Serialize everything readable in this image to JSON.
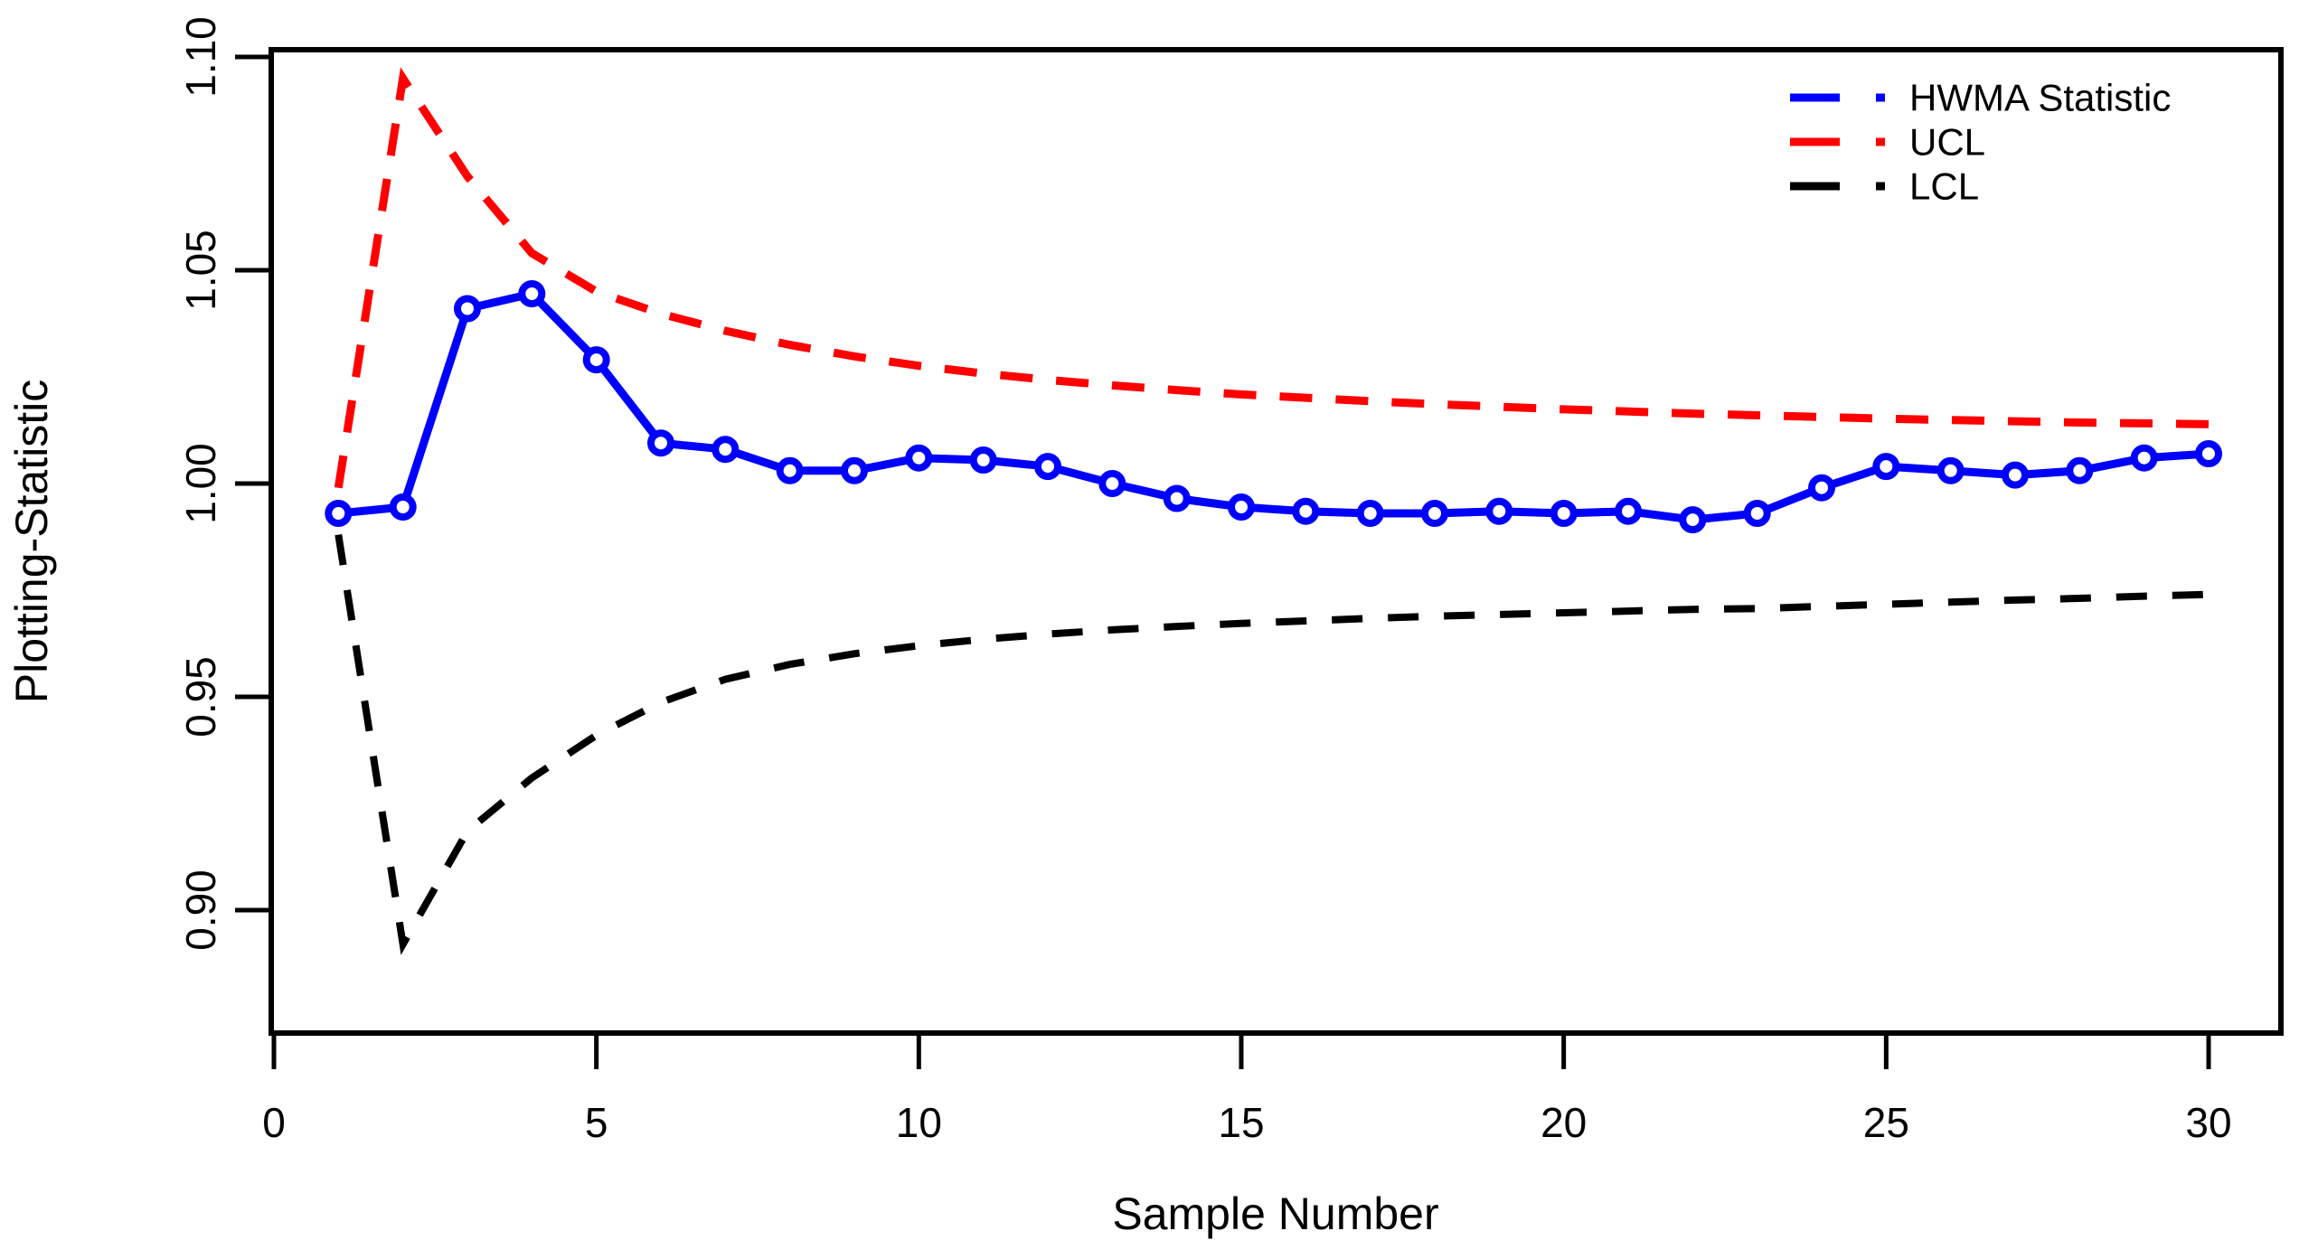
{
  "figure": {
    "background": "#ffffff",
    "plot_border_color": "#000000"
  },
  "legend": {
    "position": "top-right",
    "items": [
      {
        "label": "HWMA Statistic",
        "color": "#0000ff",
        "style": "dashed"
      },
      {
        "label": "UCL",
        "color": "#ff0000",
        "style": "dashed"
      },
      {
        "label": "LCL",
        "color": "#000000",
        "style": "dashed"
      }
    ]
  },
  "chart_data": {
    "type": "line",
    "title": "",
    "xlabel": "Sample Number",
    "ylabel": "Plotting-Statistic",
    "x_ticks": [
      0,
      5,
      10,
      15,
      20,
      25,
      30
    ],
    "y_ticks": [
      0.9,
      0.95,
      1.0,
      1.05,
      1.1
    ],
    "xlim": [
      0,
      31
    ],
    "ylim": [
      0.871,
      1.102
    ],
    "grid": false,
    "legend_position": "top-right",
    "x": [
      1,
      2,
      3,
      4,
      5,
      6,
      7,
      8,
      9,
      10,
      11,
      12,
      13,
      14,
      15,
      16,
      17,
      18,
      19,
      20,
      21,
      22,
      23,
      24,
      25,
      26,
      27,
      28,
      29,
      30
    ],
    "series": [
      {
        "name": "HWMA Statistic",
        "color": "#0000ff",
        "style": "solid",
        "marker": "circle",
        "values": [
          0.993,
          0.9945,
          1.041,
          1.0445,
          1.029,
          1.0095,
          1.008,
          1.003,
          1.003,
          1.006,
          1.0055,
          1.004,
          1.0,
          0.9965,
          0.9945,
          0.9935,
          0.993,
          0.993,
          0.9935,
          0.993,
          0.9935,
          0.9915,
          0.993,
          0.999,
          1.004,
          1.003,
          1.002,
          1.003,
          1.006,
          1.007
        ]
      },
      {
        "name": "UCL",
        "color": "#ff0000",
        "style": "dashed",
        "marker": "none",
        "values": [
          0.999,
          1.095,
          1.072,
          1.054,
          1.045,
          1.0398,
          1.0358,
          1.0325,
          1.0298,
          1.0276,
          1.0258,
          1.0243,
          1.023,
          1.0219,
          1.0209,
          1.0201,
          1.0193,
          1.0186,
          1.018,
          1.0174,
          1.0169,
          1.0164,
          1.016,
          1.0156,
          1.0152,
          1.0149,
          1.0146,
          1.0143,
          1.0141,
          1.0139
        ]
      },
      {
        "name": "LCL",
        "color": "#000000",
        "style": "dashed",
        "marker": "none",
        "values": [
          0.988,
          0.892,
          0.9185,
          0.931,
          0.941,
          0.9487,
          0.9541,
          0.9576,
          0.9601,
          0.962,
          0.9635,
          0.9647,
          0.9657,
          0.9665,
          0.9672,
          0.9678,
          0.9684,
          0.9689,
          0.9693,
          0.9697,
          0.9701,
          0.9705,
          0.9707,
          0.9712,
          0.9717,
          0.9722,
          0.9727,
          0.9731,
          0.9736,
          0.974
        ]
      }
    ]
  }
}
